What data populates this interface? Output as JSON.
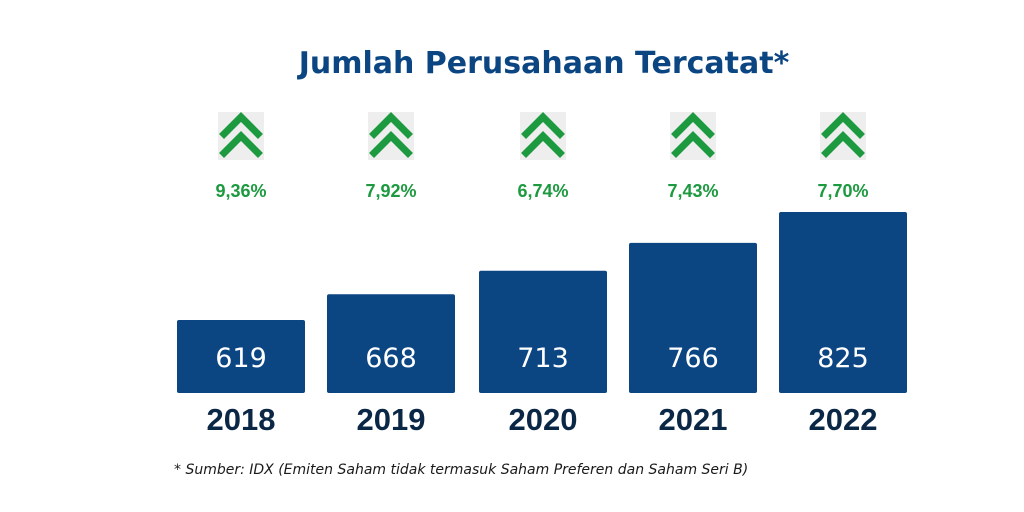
{
  "colors": {
    "bar": "#0b4582",
    "title": "#0b4582",
    "growth": "#1d9a3f",
    "growth_icon_bg": "#eeeeee",
    "value_text": "#ffffff",
    "year_text": "#0b2746",
    "footnote_text": "#1a1a1a"
  },
  "footnote": "* Sumber: IDX (Emiten Saham tidak termasuk Saham Preferen dan Saham Seri B)",
  "chart_data": {
    "type": "bar",
    "title": "Jumlah Perusahaan Tercatat*",
    "xlabel": "",
    "ylabel": "",
    "categories": [
      "2018",
      "2019",
      "2020",
      "2021",
      "2022"
    ],
    "values": [
      619,
      668,
      713,
      766,
      825
    ],
    "value_labels": [
      "619",
      "668",
      "713",
      "766",
      "825"
    ],
    "growth_labels": [
      "9,36%",
      "7,92%",
      "6,74%",
      "7,43%",
      "7,70%"
    ],
    "growth_direction": [
      "up",
      "up",
      "up",
      "up",
      "up"
    ],
    "growth_icon": "double-chevron-up-icon",
    "grid": false,
    "legend": "none"
  }
}
